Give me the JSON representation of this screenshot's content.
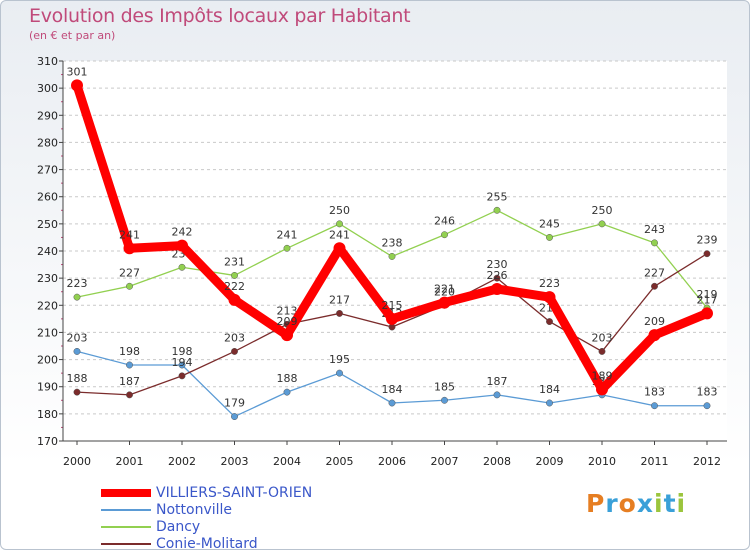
{
  "chart_data": {
    "type": "line",
    "title": "Evolution des Impôts locaux par Habitant",
    "subtitle": "(en € et par an)",
    "x": [
      "2000",
      "2001",
      "2002",
      "2003",
      "2004",
      "2005",
      "2006",
      "2007",
      "2008",
      "2009",
      "2010",
      "2011",
      "2012"
    ],
    "ylim": [
      170,
      310
    ],
    "yticks": [
      170,
      180,
      190,
      200,
      210,
      220,
      230,
      240,
      250,
      260,
      270,
      280,
      290,
      300,
      310
    ],
    "grid": "horizontal dashed",
    "legend": "bottom-left",
    "series": [
      {
        "name": "VILLIERS-SAINT-ORIEN",
        "color": "#ff0000",
        "values": [
          301,
          241,
          242,
          222,
          209,
          241,
          215,
          221,
          226,
          223,
          189,
          209,
          217
        ]
      },
      {
        "name": "Nottonville",
        "color": "#5b9bd5",
        "values": [
          203,
          198,
          198,
          179,
          188,
          195,
          184,
          185,
          187,
          184,
          187,
          183,
          183
        ]
      },
      {
        "name": "Dancy",
        "color": "#92d050",
        "values": [
          223,
          227,
          234,
          231,
          241,
          250,
          238,
          246,
          255,
          245,
          250,
          243,
          219
        ]
      },
      {
        "name": "Conie-Molitard",
        "color": "#7b2c2c",
        "values": [
          188,
          187,
          194,
          203,
          213,
          217,
          212,
          220,
          230,
          214,
          203,
          227,
          239
        ]
      }
    ]
  },
  "logo": {
    "text": "Proxiti",
    "colors": [
      "#e67e22",
      "#3aa0d8",
      "#e67e22",
      "#3aa0d8",
      "#9bc53d",
      "#3aa0d8",
      "#9bc53d"
    ]
  }
}
